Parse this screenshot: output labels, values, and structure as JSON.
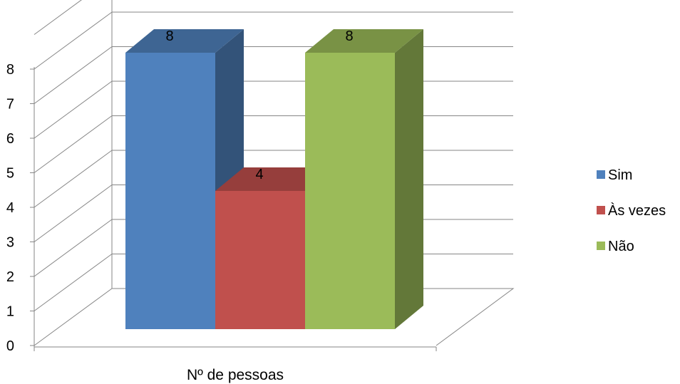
{
  "chart_data": {
    "type": "bar",
    "title": "",
    "xlabel": "",
    "ylabel": "",
    "categories": [
      "Nº de pessoas"
    ],
    "series": [
      {
        "name": "Sim",
        "values": [
          8
        ],
        "color": "#4F81BD"
      },
      {
        "name": "Às vezes",
        "values": [
          4
        ],
        "color": "#C0504D"
      },
      {
        "name": "Não",
        "values": [
          8
        ],
        "color": "#9BBB59"
      }
    ],
    "ylim": [
      0,
      8
    ],
    "yticks": [
      0,
      1,
      2,
      3,
      4,
      5,
      6,
      7,
      8
    ],
    "grid": true,
    "legend_position": "right",
    "style": "3d-column"
  }
}
